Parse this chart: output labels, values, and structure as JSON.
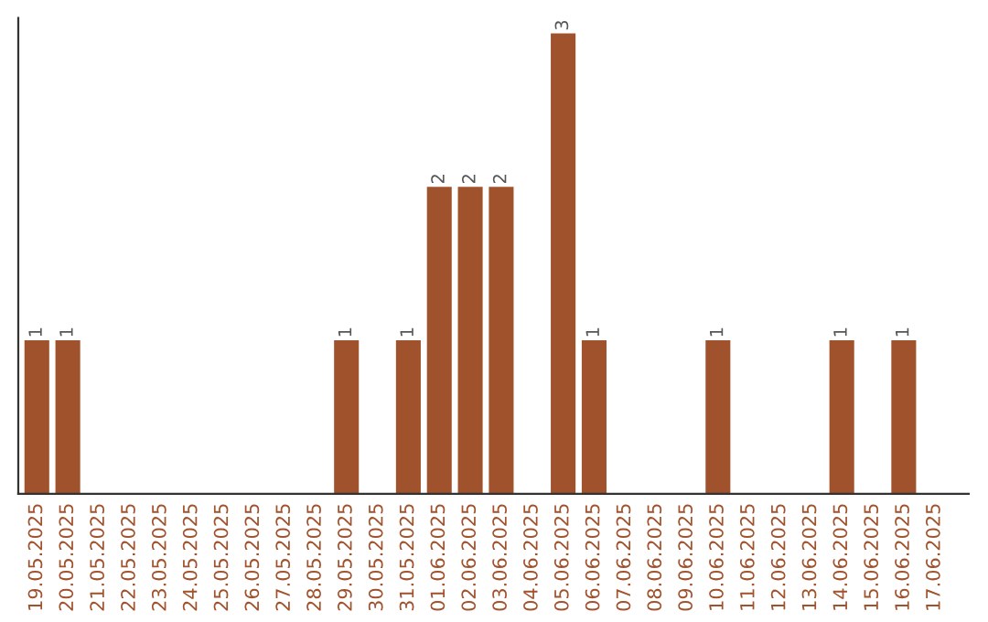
{
  "chart_data": {
    "type": "bar",
    "categories": [
      "19.05.2025",
      "20.05.2025",
      "21.05.2025",
      "22.05.2025",
      "23.05.2025",
      "24.05.2025",
      "25.05.2025",
      "26.05.2025",
      "27.05.2025",
      "28.05.2025",
      "29.05.2025",
      "30.05.2025",
      "31.05.2025",
      "01.06.2025",
      "02.06.2025",
      "03.06.2025",
      "04.06.2025",
      "05.06.2025",
      "06.06.2025",
      "07.06.2025",
      "08.06.2025",
      "09.06.2025",
      "10.06.2025",
      "11.06.2025",
      "12.06.2025",
      "13.06.2025",
      "14.06.2025",
      "15.06.2025",
      "16.06.2025",
      "17.06.2025"
    ],
    "values": [
      1,
      1,
      0,
      0,
      0,
      0,
      0,
      0,
      0,
      0,
      1,
      0,
      1,
      2,
      2,
      2,
      0,
      3,
      1,
      0,
      0,
      0,
      1,
      0,
      0,
      0,
      1,
      0,
      1,
      0
    ],
    "value_labels": [
      "1",
      "1",
      null,
      null,
      null,
      null,
      null,
      null,
      null,
      null,
      "1",
      null,
      "1",
      "2",
      "2",
      "2",
      null,
      "3",
      "1",
      null,
      null,
      null,
      "1",
      null,
      null,
      null,
      "1",
      null,
      "1",
      null
    ],
    "color": "#a0522d",
    "ylim": [
      0,
      3.1
    ],
    "tick_labels": "x",
    "grid": false,
    "legend": false
  }
}
